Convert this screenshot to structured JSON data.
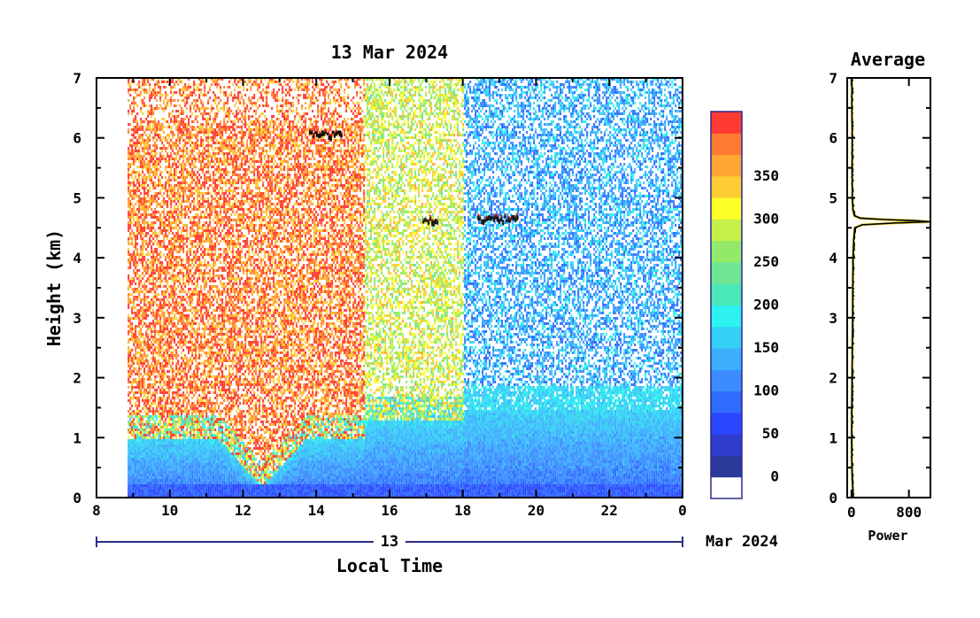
{
  "chart_data": [
    {
      "type": "heatmap",
      "title": "13 Mar 2024",
      "ylabel": "Height (km)",
      "xlabel": "Local Time",
      "xticks": [
        "8",
        "10",
        "12",
        "14",
        "16",
        "18",
        "20",
        "22",
        "0"
      ],
      "x_hours": [
        8,
        10,
        12,
        14,
        16,
        18,
        20,
        22,
        24
      ],
      "xlim": [
        8,
        24
      ],
      "yticks": [
        "0",
        "1",
        "2",
        "3",
        "4",
        "5",
        "6",
        "7"
      ],
      "ylim": [
        0,
        7
      ],
      "date_axis": {
        "day_label": "13",
        "month_label": "Mar 2024"
      },
      "data_start_hour": 8.85,
      "regimes": [
        {
          "from": 8.85,
          "to": 15.3,
          "upper_level": 360,
          "boundary_layer_top_km": 1.0
        },
        {
          "from": 15.3,
          "to": 18.0,
          "upper_level": 270,
          "boundary_layer_top_km": 1.3
        },
        {
          "from": 18.0,
          "to": 24.0,
          "upper_level": 110,
          "boundary_layer_top_km": 1.5
        }
      ],
      "bl_dip": {
        "center_hour": 12.5,
        "min_km": 0.2
      },
      "cloud_layers": [
        {
          "from": 13.8,
          "to": 14.7,
          "height_km": 6.05
        },
        {
          "from": 16.9,
          "to": 17.3,
          "height_km": 4.62
        },
        {
          "from": 18.4,
          "to": 19.5,
          "height_km": 4.65
        }
      ],
      "colorbar": {
        "levels": [
          0,
          25,
          50,
          75,
          100,
          125,
          150,
          175,
          200,
          225,
          250,
          275,
          300,
          325,
          350,
          375
        ],
        "tick_labels": [
          "0",
          "50",
          "100",
          "150",
          "200",
          "250",
          "300",
          "350"
        ],
        "tick_values": [
          0,
          50,
          100,
          150,
          200,
          250,
          300,
          350
        ],
        "colors": [
          "#ffffff",
          "#2b3a9a",
          "#2f3ccc",
          "#2b47ff",
          "#2f6bff",
          "#3b8dff",
          "#3cb0ff",
          "#35d0f5",
          "#2ef2ef",
          "#4be8b8",
          "#6fe693",
          "#93ea6a",
          "#c5f04a",
          "#ffff2a",
          "#ffcc33",
          "#ffa633",
          "#ff7a33",
          "#ff3b33"
        ]
      }
    },
    {
      "type": "line",
      "title": "Average",
      "xlabel": "Power",
      "xticks": [
        "0",
        "800"
      ],
      "xtick_values": [
        0,
        800
      ],
      "xlim": [
        -60,
        1100
      ],
      "yticks": [
        "0",
        "1",
        "2",
        "3",
        "4",
        "5",
        "6",
        "7"
      ],
      "ylim": [
        0,
        7
      ],
      "profile": {
        "height_km": [
          0.0,
          0.1,
          0.3,
          0.5,
          0.8,
          1.0,
          1.5,
          2.0,
          2.5,
          3.0,
          3.5,
          4.0,
          4.3,
          4.5,
          4.55,
          4.58,
          4.6,
          4.62,
          4.64,
          4.66,
          4.7,
          4.8,
          5.0,
          5.5,
          6.0,
          6.5,
          7.0
        ],
        "power": [
          25,
          20,
          10,
          5,
          3,
          2,
          4,
          8,
          12,
          15,
          18,
          22,
          30,
          45,
          150,
          600,
          1100,
          900,
          400,
          120,
          40,
          20,
          12,
          8,
          10,
          6,
          5
        ]
      }
    }
  ]
}
